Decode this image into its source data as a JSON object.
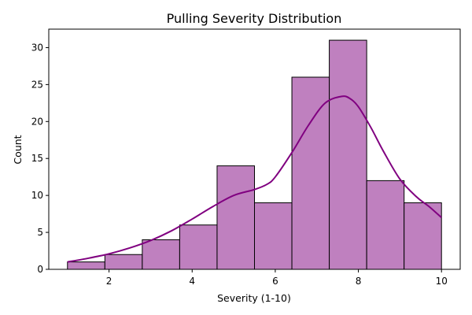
{
  "chart_data": {
    "type": "bar",
    "title": "Pulling Severity Distribution",
    "xlabel": "Severity (1-10)",
    "ylabel": "Count",
    "xlim": [
      0.55,
      10.45
    ],
    "ylim": [
      0,
      32.5
    ],
    "x_ticks": [
      2,
      4,
      6,
      8,
      10
    ],
    "y_ticks": [
      0,
      5,
      10,
      15,
      20,
      25,
      30
    ],
    "bins": [
      {
        "x0": 1.0,
        "x1": 1.9,
        "count": 1
      },
      {
        "x0": 1.9,
        "x1": 2.8,
        "count": 2
      },
      {
        "x0": 2.8,
        "x1": 3.7,
        "count": 4
      },
      {
        "x0": 3.7,
        "x1": 4.6,
        "count": 6
      },
      {
        "x0": 4.6,
        "x1": 5.5,
        "count": 14
      },
      {
        "x0": 5.5,
        "x1": 6.4,
        "count": 9
      },
      {
        "x0": 6.4,
        "x1": 7.3,
        "count": 26
      },
      {
        "x0": 7.3,
        "x1": 8.2,
        "count": 31
      },
      {
        "x0": 8.2,
        "x1": 9.1,
        "count": 12
      },
      {
        "x0": 9.1,
        "x1": 10.0,
        "count": 9
      }
    ],
    "kde": {
      "x": [
        1.0,
        1.5,
        2.0,
        2.5,
        3.0,
        3.5,
        4.0,
        4.5,
        5.0,
        5.5,
        5.8,
        6.0,
        6.4,
        6.8,
        7.2,
        7.6,
        7.8,
        8.0,
        8.3,
        8.6,
        9.0,
        9.4,
        9.7,
        10.0
      ],
      "y": [
        1.0,
        1.5,
        2.1,
        2.9,
        3.9,
        5.2,
        6.8,
        8.5,
        10.0,
        10.8,
        11.5,
        12.5,
        15.8,
        19.5,
        22.5,
        23.4,
        23.1,
        22.0,
        19.2,
        16.0,
        12.2,
        9.8,
        8.5,
        7.0
      ]
    },
    "bar_color": "#bf80bf",
    "edge_color": "#000000",
    "kde_color": "#800080",
    "grid": false,
    "legend": "none"
  }
}
